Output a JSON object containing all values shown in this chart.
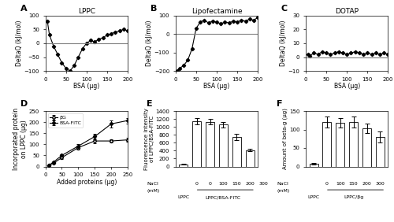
{
  "panel_A": {
    "title": "LPPC",
    "xlabel": "BSA (µg)",
    "ylabel": "DeltaQ (kJ/mol)",
    "x": [
      5,
      10,
      20,
      30,
      40,
      50,
      60,
      70,
      80,
      90,
      100,
      110,
      120,
      130,
      140,
      150,
      160,
      170,
      180,
      190,
      200
    ],
    "y": [
      80,
      30,
      -10,
      -40,
      -70,
      -90,
      -100,
      -80,
      -50,
      -20,
      0,
      10,
      5,
      15,
      20,
      30,
      35,
      40,
      45,
      50,
      45
    ],
    "ylim": [
      -100,
      100
    ],
    "yticks": [
      -100,
      -50,
      0,
      50,
      100
    ],
    "xlim": [
      0,
      200
    ],
    "xticks": [
      0,
      50,
      100,
      150,
      200
    ]
  },
  "panel_B": {
    "title": "Lipofectamine",
    "xlabel": "BSA (µg)",
    "ylabel": "DeltaQ (kJ/mol)",
    "x": [
      5,
      10,
      20,
      30,
      40,
      50,
      60,
      70,
      80,
      90,
      100,
      110,
      120,
      130,
      140,
      150,
      160,
      170,
      180,
      190,
      200
    ],
    "y": [
      -200,
      -185,
      -170,
      -140,
      -80,
      30,
      65,
      75,
      60,
      70,
      65,
      55,
      65,
      60,
      70,
      65,
      75,
      70,
      80,
      75,
      90
    ],
    "ylim": [
      -200,
      100
    ],
    "yticks": [
      -200,
      -100,
      0,
      100
    ],
    "xlim": [
      0,
      200
    ],
    "xticks": [
      0,
      50,
      100,
      150,
      200
    ]
  },
  "panel_C": {
    "title": "DOTAP",
    "xlabel": "BSA (µg)",
    "ylabel": "DeltaQ (kJ/mol)",
    "x": [
      5,
      10,
      20,
      30,
      40,
      50,
      60,
      70,
      80,
      90,
      100,
      110,
      120,
      130,
      140,
      150,
      160,
      170,
      180,
      190,
      200
    ],
    "y": [
      2,
      1,
      3,
      2,
      4,
      3,
      2,
      3,
      4,
      3,
      2,
      3,
      4,
      3,
      2,
      3,
      2,
      3,
      2,
      3,
      2
    ],
    "ylim": [
      -10,
      30
    ],
    "yticks": [
      -10,
      0,
      10,
      20,
      30
    ],
    "xlim": [
      0,
      200
    ],
    "xticks": [
      0,
      50,
      100,
      150,
      200
    ]
  },
  "panel_D": {
    "xlabel": "Added proteins (µg)",
    "ylabel": "Incorporated protein\non LPPC (µg)",
    "xlim": [
      0,
      250
    ],
    "ylim": [
      0,
      250
    ],
    "xticks": [
      0,
      50,
      100,
      150,
      200,
      250
    ],
    "yticks": [
      0,
      50,
      100,
      150,
      200,
      250
    ],
    "bG_x": [
      10,
      25,
      50,
      100,
      150,
      200,
      250
    ],
    "bG_y": [
      5,
      15,
      40,
      85,
      115,
      115,
      120
    ],
    "bG_err": [
      2,
      3,
      5,
      8,
      10,
      8,
      8
    ],
    "BSA_x": [
      10,
      25,
      50,
      100,
      150,
      200,
      250
    ],
    "BSA_y": [
      5,
      20,
      50,
      92,
      135,
      192,
      207
    ],
    "BSA_err": [
      2,
      4,
      6,
      10,
      12,
      15,
      12
    ]
  },
  "panel_E": {
    "ylabel": "Fluorescence intensity\nof LPPC/BSA-FITC",
    "bar_values": [
      50,
      1150,
      1130,
      1060,
      740,
      410
    ],
    "bar_errors": [
      10,
      80,
      70,
      70,
      80,
      30
    ],
    "ylim": [
      0,
      1400
    ],
    "yticks": [
      0,
      200,
      400,
      600,
      800,
      1000,
      1200,
      1400
    ],
    "nacl_vals": [
      "0",
      "0",
      "100",
      "150",
      "200",
      "300"
    ],
    "group1_label": "LPPC",
    "group2_label": "LPPC/BSA-FITC"
  },
  "panel_F": {
    "ylabel": "Amount of beta-g (µg)",
    "bar_values": [
      8,
      120,
      118,
      120,
      103,
      80
    ],
    "bar_errors": [
      2,
      15,
      12,
      15,
      12,
      15
    ],
    "ylim": [
      0,
      150
    ],
    "yticks": [
      0,
      50,
      100,
      150
    ],
    "nacl_vals": [
      "0",
      "100",
      "150",
      "200",
      "300"
    ],
    "group1_label": "LPPC",
    "group2_label": "LPPC/βg"
  }
}
